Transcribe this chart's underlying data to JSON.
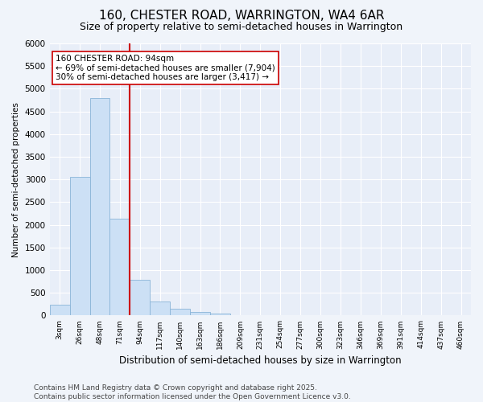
{
  "title": "160, CHESTER ROAD, WARRINGTON, WA4 6AR",
  "subtitle": "Size of property relative to semi-detached houses in Warrington",
  "xlabel": "Distribution of semi-detached houses by size in Warrington",
  "ylabel": "Number of semi-detached properties",
  "bar_labels": [
    "3sqm",
    "26sqm",
    "48sqm",
    "71sqm",
    "94sqm",
    "117sqm",
    "140sqm",
    "163sqm",
    "186sqm",
    "209sqm",
    "231sqm",
    "254sqm",
    "277sqm",
    "300sqm",
    "323sqm",
    "346sqm",
    "369sqm",
    "391sqm",
    "414sqm",
    "437sqm",
    "460sqm"
  ],
  "bar_values": [
    240,
    3060,
    4800,
    2130,
    780,
    305,
    150,
    80,
    50,
    0,
    0,
    0,
    0,
    0,
    0,
    0,
    0,
    0,
    0,
    0,
    0
  ],
  "bar_color": "#cce0f5",
  "bar_edge_color": "#8ab4d8",
  "vline_color": "#cc0000",
  "annotation_text": "160 CHESTER ROAD: 94sqm\n← 69% of semi-detached houses are smaller (7,904)\n30% of semi-detached houses are larger (3,417) →",
  "annotation_box_color": "#ffffff",
  "annotation_box_edge": "#cc0000",
  "ylim": [
    0,
    6000
  ],
  "yticks": [
    0,
    500,
    1000,
    1500,
    2000,
    2500,
    3000,
    3500,
    4000,
    4500,
    5000,
    5500,
    6000
  ],
  "bg_color": "#f0f4fa",
  "plot_bg_color": "#e8eef8",
  "footer": "Contains HM Land Registry data © Crown copyright and database right 2025.\nContains public sector information licensed under the Open Government Licence v3.0.",
  "title_fontsize": 11,
  "subtitle_fontsize": 9,
  "annotation_fontsize": 7.5,
  "footer_fontsize": 6.5,
  "ylabel_fontsize": 7.5,
  "xlabel_fontsize": 8.5
}
